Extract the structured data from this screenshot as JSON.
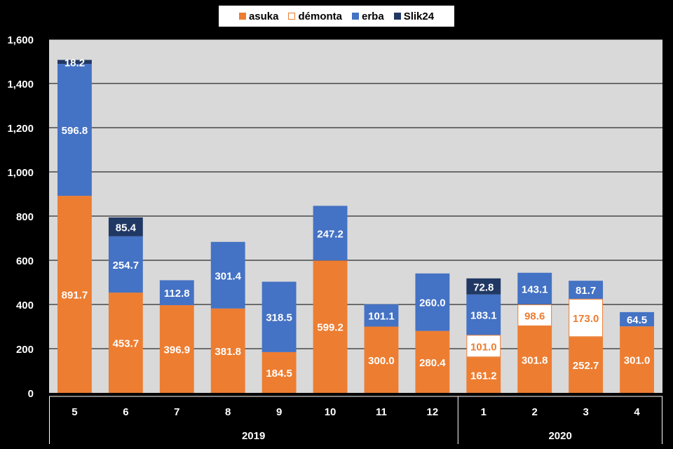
{
  "chart_data": {
    "type": "bar",
    "stacked": true,
    "categories": [
      "5",
      "6",
      "7",
      "8",
      "9",
      "10",
      "11",
      "12",
      "1",
      "2",
      "3",
      "4"
    ],
    "groups": [
      {
        "label": "2019",
        "count": 8
      },
      {
        "label": "2020",
        "count": 4
      }
    ],
    "series": [
      {
        "name": "asuka",
        "color": "#ED7D31",
        "values": [
          891.7,
          453.7,
          396.9,
          381.8,
          184.5,
          599.2,
          300.0,
          280.4,
          161.2,
          301.8,
          252.7,
          301.0
        ]
      },
      {
        "name": "démonta",
        "color": "#FFFFFF",
        "outline": "#ED7D31",
        "values": [
          null,
          null,
          null,
          null,
          null,
          null,
          null,
          null,
          101.0,
          98.6,
          173.0,
          null
        ]
      },
      {
        "name": "erba",
        "color": "#4472C4",
        "values": [
          596.8,
          254.7,
          112.8,
          301.4,
          318.5,
          247.2,
          101.1,
          260.0,
          183.1,
          143.1,
          81.7,
          64.5
        ]
      },
      {
        "name": "Slik24",
        "color": "#203864",
        "values": [
          18.2,
          85.4,
          null,
          null,
          null,
          null,
          null,
          null,
          72.8,
          null,
          null,
          null
        ]
      }
    ],
    "y_ticks": [
      "0",
      "200",
      "400",
      "600",
      "800",
      "1,000",
      "1,200",
      "1,400",
      "1,600"
    ],
    "ylim": [
      0,
      1600
    ],
    "grid": true,
    "legend_position": "top",
    "colors": {
      "background": "#000000",
      "plot_background": "#D9D9D9"
    }
  }
}
